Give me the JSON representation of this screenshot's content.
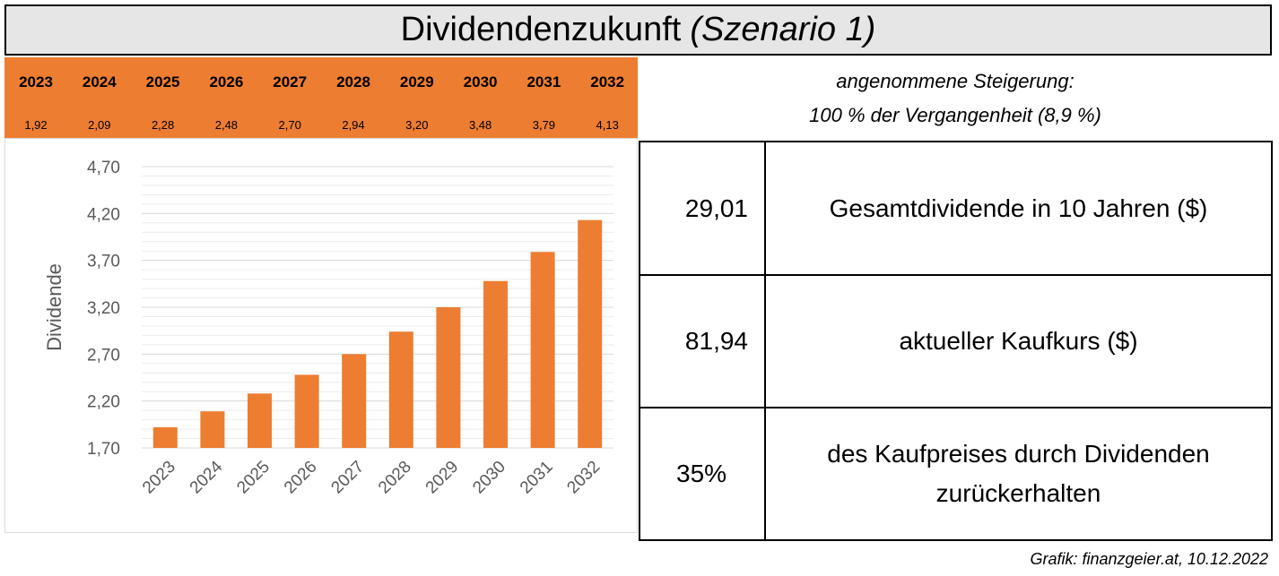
{
  "header": {
    "title_main": "Dividendenzukunft",
    "title_sub": "(Szenario 1)"
  },
  "years_table": {
    "years": [
      "2023",
      "2024",
      "2025",
      "2026",
      "2027",
      "2028",
      "2029",
      "2030",
      "2031",
      "2032"
    ],
    "values": [
      "1,92",
      "2,09",
      "2,28",
      "2,48",
      "2,70",
      "2,94",
      "3,20",
      "3,48",
      "3,79",
      "4,13"
    ]
  },
  "assumption": {
    "line1": "angenommene Steigerung:",
    "line2": "100 % der Vergangenheit (8,9 %)"
  },
  "metrics": [
    {
      "value": "29,01",
      "label": "Gesamtdividende in 10 Jahren ($)"
    },
    {
      "value": "81,94",
      "label": "aktueller Kaufkurs ($)"
    },
    {
      "value": "35%",
      "label": "des Kaufpreises durch Dividenden zurückerhalten"
    }
  ],
  "credit": "Grafik: finanzgeier.at, 10.12.2022",
  "colors": {
    "accent": "#ed7d31",
    "title_bg": "#e6e6e6",
    "grid": "#d9d9d9",
    "axis_text": "#595959"
  },
  "chart_data": {
    "type": "bar",
    "categories": [
      "2023",
      "2024",
      "2025",
      "2026",
      "2027",
      "2028",
      "2029",
      "2030",
      "2031",
      "2032"
    ],
    "values": [
      1.92,
      2.09,
      2.28,
      2.48,
      2.7,
      2.94,
      3.2,
      3.48,
      3.79,
      4.13
    ],
    "title": "",
    "xlabel": "",
    "ylabel": "Dividende",
    "ylim": [
      1.7,
      4.7
    ],
    "yticks": [
      "1,70",
      "2,20",
      "2,70",
      "3,20",
      "3,70",
      "4,20",
      "4,70"
    ],
    "grid": true,
    "legend": "none"
  }
}
